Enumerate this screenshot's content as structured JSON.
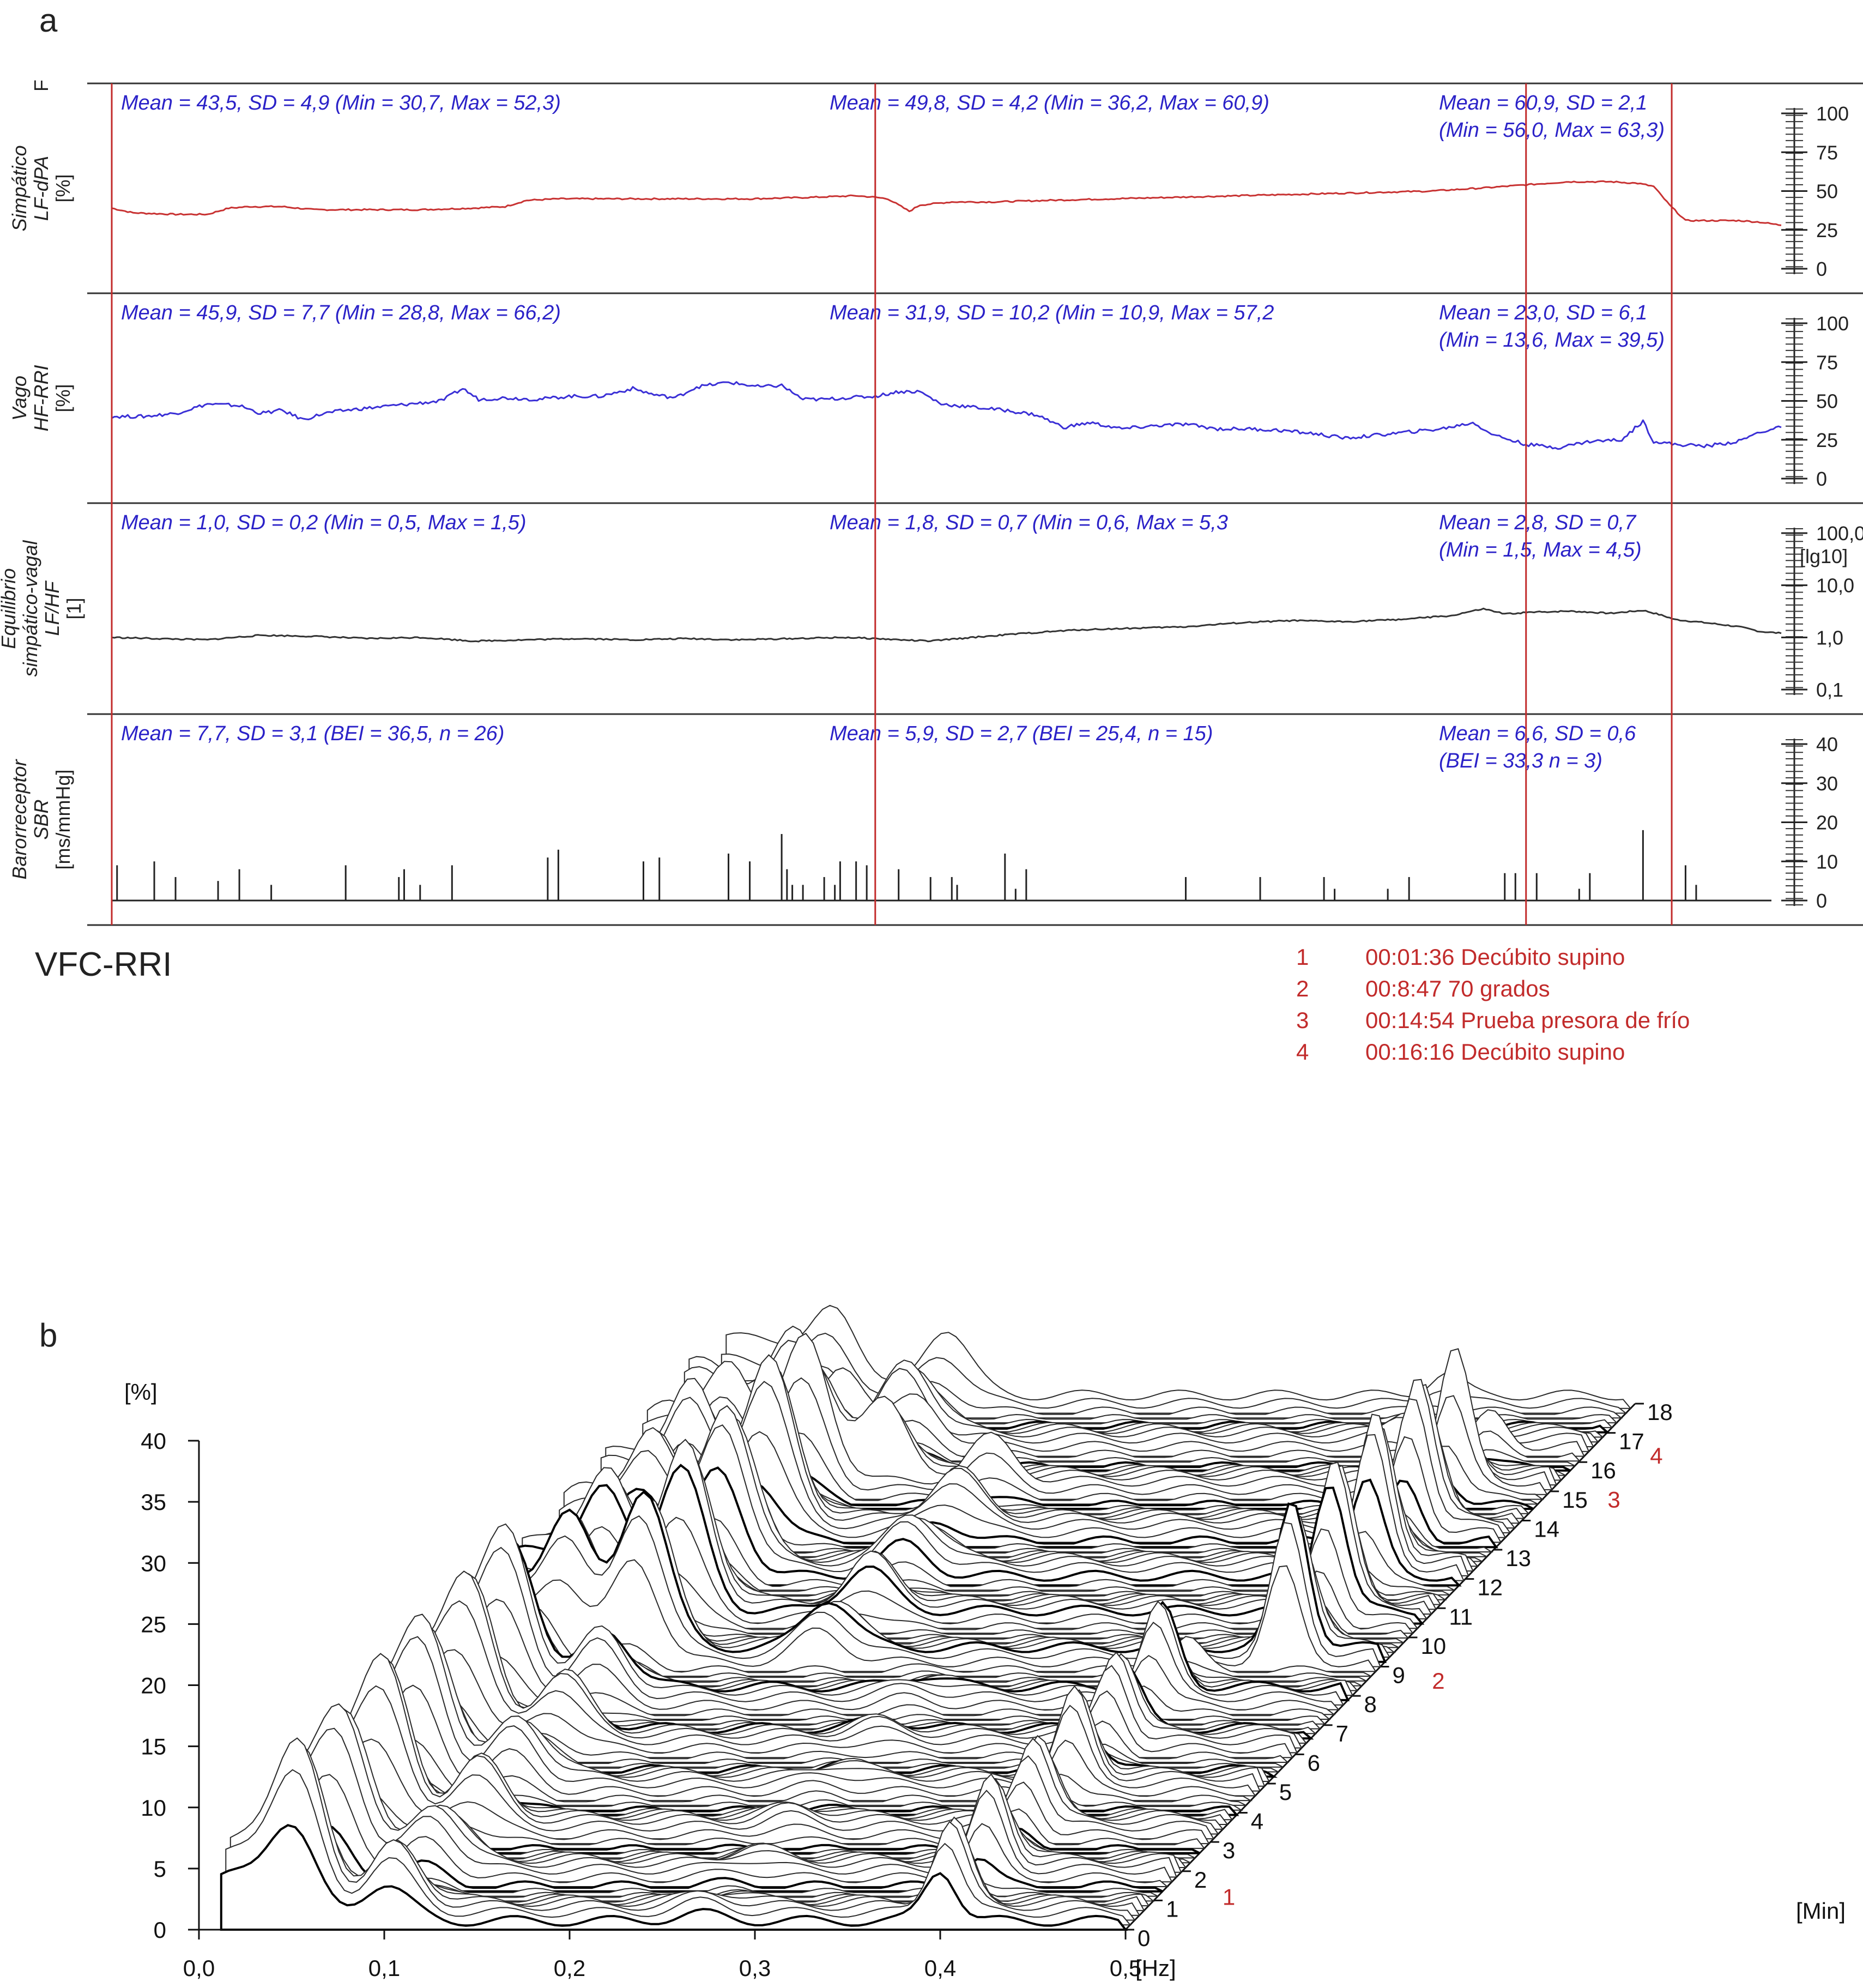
{
  "panel_a": {
    "letter": "a",
    "top_stub": "F",
    "title": "VFC-RRI",
    "events": [
      {
        "num": "1",
        "text": "00:01:36 Decúbito supino"
      },
      {
        "num": "2",
        "text": "00:8:47 70 grados"
      },
      {
        "num": "3",
        "text": "00:14:54 Prueba presora de frío"
      },
      {
        "num": "4",
        "text": "00:16:16 Decúbito supino"
      }
    ],
    "event_marker_times_min": [
      1.6,
      8.78,
      14.9,
      16.27
    ],
    "colors": {
      "sympathetic": "#c83232",
      "vagal": "#3a2fd6",
      "balance": "#333333",
      "markers": "#c22b2b",
      "stats": "#2b22c8"
    }
  },
  "chart_data": [
    {
      "type": "line",
      "id": "sympathetic",
      "ylabel_lines": [
        "Simpático",
        "LF-dPA",
        "[%]"
      ],
      "ylim": [
        0,
        100
      ],
      "yticks": [
        "100",
        "75",
        "50",
        "25",
        "0"
      ],
      "x_unit": "min",
      "xlim": [
        1.6,
        17.3
      ],
      "series": [
        {
          "values": [
            [
              1.6,
              39
            ],
            [
              1.8,
              36
            ],
            [
              2.2,
              35
            ],
            [
              2.5,
              35
            ],
            [
              2.7,
              39
            ],
            [
              2.9,
              40
            ],
            [
              3.2,
              40
            ],
            [
              3.5,
              38
            ],
            [
              4.0,
              38
            ],
            [
              4.5,
              38
            ],
            [
              5.0,
              39
            ],
            [
              5.3,
              40
            ],
            [
              5.5,
              44
            ],
            [
              5.8,
              45
            ],
            [
              6.2,
              45
            ],
            [
              6.6,
              45
            ],
            [
              7.0,
              45
            ],
            [
              7.6,
              45
            ],
            [
              8.2,
              46
            ],
            [
              8.6,
              47
            ],
            [
              8.78,
              46
            ],
            [
              8.9,
              45
            ],
            [
              9.0,
              41
            ],
            [
              9.1,
              37
            ],
            [
              9.2,
              41
            ],
            [
              9.5,
              43
            ],
            [
              9.9,
              43
            ],
            [
              10.4,
              44
            ],
            [
              11.0,
              45
            ],
            [
              11.6,
              46
            ],
            [
              12.2,
              47
            ],
            [
              12.8,
              48
            ],
            [
              13.4,
              49
            ],
            [
              14.0,
              50
            ],
            [
              14.5,
              52
            ],
            [
              14.9,
              54
            ],
            [
              15.3,
              56
            ],
            [
              15.7,
              56
            ],
            [
              15.95,
              55
            ],
            [
              16.1,
              53
            ],
            [
              16.25,
              41
            ],
            [
              16.4,
              31
            ],
            [
              16.6,
              31
            ],
            [
              16.9,
              31
            ],
            [
              17.1,
              30
            ],
            [
              17.3,
              28
            ]
          ]
        }
      ],
      "stats": [
        {
          "line1": "Mean = 43,5, SD = 4,9 (Min = 30,7, Max = 52,3)",
          "line2": ""
        },
        {
          "line1": "Mean = 49,8, SD = 4,2 (Min = 36,2, Max = 60,9)",
          "line2": ""
        },
        {
          "line1": "Mean = 60,9, SD = 2,1",
          "line2": "(Min = 56,0, Max = 63,3)"
        }
      ]
    },
    {
      "type": "line",
      "id": "vagal",
      "ylabel_lines": [
        "Vago",
        "HF-RRI",
        "[%]"
      ],
      "ylim": [
        0,
        100
      ],
      "yticks": [
        "100",
        "75",
        "50",
        "25",
        "0"
      ],
      "x_unit": "min",
      "xlim": [
        1.6,
        17.3
      ],
      "series": [
        {
          "values": [
            [
              1.6,
              40
            ],
            [
              1.9,
              40
            ],
            [
              2.2,
              42
            ],
            [
              2.5,
              48
            ],
            [
              2.8,
              47
            ],
            [
              3.0,
              42
            ],
            [
              3.2,
              44
            ],
            [
              3.4,
              38
            ],
            [
              3.6,
              42
            ],
            [
              3.8,
              44
            ],
            [
              4.1,
              46
            ],
            [
              4.4,
              48
            ],
            [
              4.7,
              50
            ],
            [
              4.9,
              58
            ],
            [
              5.05,
              51
            ],
            [
              5.3,
              52
            ],
            [
              5.6,
              51
            ],
            [
              5.9,
              53
            ],
            [
              6.2,
              53
            ],
            [
              6.5,
              58
            ],
            [
              6.7,
              54
            ],
            [
              6.9,
              52
            ],
            [
              7.1,
              59
            ],
            [
              7.4,
              62
            ],
            [
              7.7,
              59
            ],
            [
              7.9,
              60
            ],
            [
              8.1,
              51
            ],
            [
              8.3,
              51
            ],
            [
              8.5,
              52
            ],
            [
              8.78,
              53
            ],
            [
              9.0,
              56
            ],
            [
              9.2,
              56
            ],
            [
              9.4,
              48
            ],
            [
              9.7,
              46
            ],
            [
              10.0,
              44
            ],
            [
              10.3,
              41
            ],
            [
              10.55,
              33
            ],
            [
              10.8,
              36
            ],
            [
              11.1,
              32
            ],
            [
              11.4,
              34
            ],
            [
              11.7,
              35
            ],
            [
              12.0,
              32
            ],
            [
              12.3,
              32
            ],
            [
              12.6,
              31
            ],
            [
              12.9,
              29
            ],
            [
              13.2,
              26
            ],
            [
              13.5,
              28
            ],
            [
              13.8,
              30
            ],
            [
              14.1,
              32
            ],
            [
              14.4,
              36
            ],
            [
              14.6,
              28
            ],
            [
              14.9,
              22
            ],
            [
              15.2,
              20
            ],
            [
              15.5,
              24
            ],
            [
              15.8,
              25
            ],
            [
              16.0,
              37
            ],
            [
              16.1,
              24
            ],
            [
              16.3,
              22
            ],
            [
              16.6,
              21
            ],
            [
              16.9,
              24
            ],
            [
              17.1,
              30
            ],
            [
              17.3,
              33
            ]
          ]
        }
      ],
      "stats": [
        {
          "line1": "Mean = 45,9, SD = 7,7 (Min = 28,8, Max = 66,2)",
          "line2": ""
        },
        {
          "line1": "Mean = 31,9, SD = 10,2 (Min = 10,9, Max = 57,2",
          "line2": ""
        },
        {
          "line1": "Mean = 23,0, SD = 6,1",
          "line2": "(Min = 13,6, Max = 39,5)"
        }
      ]
    },
    {
      "type": "line",
      "id": "balance",
      "ylabel_lines": [
        "Equilibrio",
        "simpático-vagal",
        "LF/HF",
        "[1]"
      ],
      "scale": "log",
      "scale_label": "[lg10]",
      "ylim": [
        0.1,
        100
      ],
      "yticks": [
        "100,0",
        "10,0",
        "1,0",
        "0,1"
      ],
      "x_unit": "min",
      "xlim": [
        1.6,
        17.3
      ],
      "series": [
        {
          "values": [
            [
              1.6,
              1.0
            ],
            [
              2.0,
              0.95
            ],
            [
              2.5,
              0.9
            ],
            [
              3.0,
              1.1
            ],
            [
              3.5,
              1.05
            ],
            [
              4.0,
              0.95
            ],
            [
              4.5,
              1.0
            ],
            [
              5.0,
              0.85
            ],
            [
              5.5,
              0.9
            ],
            [
              6.0,
              0.95
            ],
            [
              6.5,
              0.9
            ],
            [
              7.0,
              0.95
            ],
            [
              7.5,
              0.9
            ],
            [
              8.0,
              0.95
            ],
            [
              8.5,
              1.0
            ],
            [
              8.78,
              0.95
            ],
            [
              9.0,
              0.9
            ],
            [
              9.3,
              0.85
            ],
            [
              9.7,
              1.0
            ],
            [
              10.2,
              1.2
            ],
            [
              10.7,
              1.4
            ],
            [
              11.2,
              1.5
            ],
            [
              11.7,
              1.6
            ],
            [
              12.2,
              1.9
            ],
            [
              12.7,
              2.1
            ],
            [
              13.2,
              2.0
            ],
            [
              13.7,
              2.2
            ],
            [
              14.2,
              2.6
            ],
            [
              14.5,
              3.5
            ],
            [
              14.7,
              2.8
            ],
            [
              14.9,
              3.0
            ],
            [
              15.3,
              3.2
            ],
            [
              15.7,
              2.9
            ],
            [
              16.0,
              3.3
            ],
            [
              16.3,
              2.2
            ],
            [
              16.6,
              1.9
            ],
            [
              16.9,
              1.6
            ],
            [
              17.1,
              1.3
            ],
            [
              17.3,
              1.2
            ]
          ]
        }
      ],
      "stats": [
        {
          "line1": "Mean = 1,0, SD = 0,2 (Min = 0,5, Max = 1,5)",
          "line2": ""
        },
        {
          "line1": "Mean = 1,8, SD = 0,7 (Min = 0,6, Max = 5,3",
          "line2": ""
        },
        {
          "line1": "Mean = 2,8, SD = 0,7",
          "line2": "(Min = 1,5, Max = 4,5)"
        }
      ]
    },
    {
      "type": "bar",
      "id": "baroreceptor",
      "ylabel_lines": [
        "Barorreceptor",
        "SBR",
        "[ms/mmHg]"
      ],
      "ylim": [
        0,
        40
      ],
      "yticks": [
        "40",
        "30",
        "20",
        "10",
        "0"
      ],
      "x_unit": "min",
      "xlim": [
        1.6,
        17.3
      ],
      "series": [
        {
          "values": [
            [
              1.65,
              9
            ],
            [
              2.0,
              10
            ],
            [
              2.2,
              6
            ],
            [
              2.6,
              5
            ],
            [
              2.8,
              8
            ],
            [
              3.1,
              4
            ],
            [
              3.8,
              9
            ],
            [
              4.3,
              6
            ],
            [
              4.35,
              8
            ],
            [
              4.5,
              4
            ],
            [
              4.8,
              9
            ],
            [
              5.7,
              11
            ],
            [
              5.8,
              13
            ],
            [
              6.6,
              10
            ],
            [
              6.75,
              11
            ],
            [
              7.4,
              12
            ],
            [
              7.6,
              10
            ],
            [
              7.9,
              17
            ],
            [
              7.95,
              8
            ],
            [
              8.0,
              4
            ],
            [
              8.1,
              4
            ],
            [
              8.3,
              6
            ],
            [
              8.4,
              4
            ],
            [
              8.45,
              10
            ],
            [
              8.6,
              10
            ],
            [
              8.7,
              9
            ],
            [
              9.0,
              8
            ],
            [
              9.3,
              6
            ],
            [
              9.5,
              6
            ],
            [
              9.55,
              4
            ],
            [
              10.0,
              12
            ],
            [
              10.1,
              3
            ],
            [
              10.2,
              8
            ],
            [
              11.7,
              6
            ],
            [
              12.4,
              6
            ],
            [
              13.0,
              6
            ],
            [
              13.1,
              3
            ],
            [
              13.6,
              3
            ],
            [
              13.8,
              6
            ],
            [
              14.7,
              7
            ],
            [
              14.8,
              7
            ],
            [
              15.0,
              7
            ],
            [
              15.4,
              3
            ],
            [
              15.5,
              7
            ],
            [
              16.0,
              18
            ],
            [
              16.4,
              9
            ],
            [
              16.5,
              4
            ]
          ]
        }
      ],
      "stats": [
        {
          "line1": "Mean = 7,7, SD = 3,1 (BEI = 36,5, n = 26)",
          "line2": ""
        },
        {
          "line1": "Mean = 5,9, SD = 2,7 (BEI = 25,4, n = 15)",
          "line2": ""
        },
        {
          "line1": "Mean = 6,6, SD = 0,6",
          "line2": "(BEI = 33,3 n = 3)"
        }
      ]
    },
    {
      "type": "line",
      "id": "waterfall",
      "subtype": "3d-waterfall-spectrum",
      "panel_letter": "b",
      "ylabel": "[%]",
      "xlabel": "[Hz]",
      "zlabel": "[Min]",
      "xlim": [
        0,
        0.5
      ],
      "ylim": [
        0,
        40
      ],
      "zlim": [
        0,
        18
      ],
      "xticks": [
        "0,0",
        "0,1",
        "0,2",
        "0,3",
        "0,4",
        "0,5"
      ],
      "yticks": [
        "0",
        "5",
        "10",
        "15",
        "20",
        "25",
        "30",
        "35",
        "40"
      ],
      "zticks": [
        "0",
        "1",
        "2",
        "3",
        "4",
        "5",
        "6",
        "7",
        "8",
        "9",
        "10",
        "11",
        "12",
        "13",
        "14",
        "15",
        "16",
        "17",
        "18"
      ],
      "markers": [
        {
          "label": "1",
          "min": 1.5
        },
        {
          "label": "2",
          "min": 8.9
        },
        {
          "label": "3",
          "min": 15.1
        },
        {
          "label": "4",
          "min": 16.6
        }
      ],
      "spectra_phases": [
        {
          "label": "1",
          "from_min": 0,
          "to_min": 8.78,
          "peaks": [
            {
              "hz": 0.05,
              "pct": 11
            },
            {
              "hz": 0.1,
              "pct": 5
            },
            {
              "hz": 0.27,
              "pct": 1
            },
            {
              "hz": 0.4,
              "pct": 7
            }
          ]
        },
        {
          "label": "2",
          "from_min": 8.78,
          "to_min": 14.9,
          "peaks": [
            {
              "hz": 0.06,
              "pct": 10
            },
            {
              "hz": 0.1,
              "pct": 13
            },
            {
              "hz": 0.2,
              "pct": 4
            },
            {
              "hz": 0.45,
              "pct": 12
            }
          ]
        },
        {
          "label": "3",
          "from_min": 14.9,
          "to_min": 16.27,
          "peaks": [
            {
              "hz": 0.1,
              "pct": 10
            },
            {
              "hz": 0.14,
              "pct": 6
            },
            {
              "hz": 0.45,
              "pct": 4
            }
          ]
        },
        {
          "label": "4",
          "from_min": 16.27,
          "to_min": 18,
          "peaks": [
            {
              "hz": 0.07,
              "pct": 8
            },
            {
              "hz": 0.13,
              "pct": 6
            },
            {
              "hz": 0.4,
              "pct": 2
            }
          ]
        }
      ]
    }
  ]
}
